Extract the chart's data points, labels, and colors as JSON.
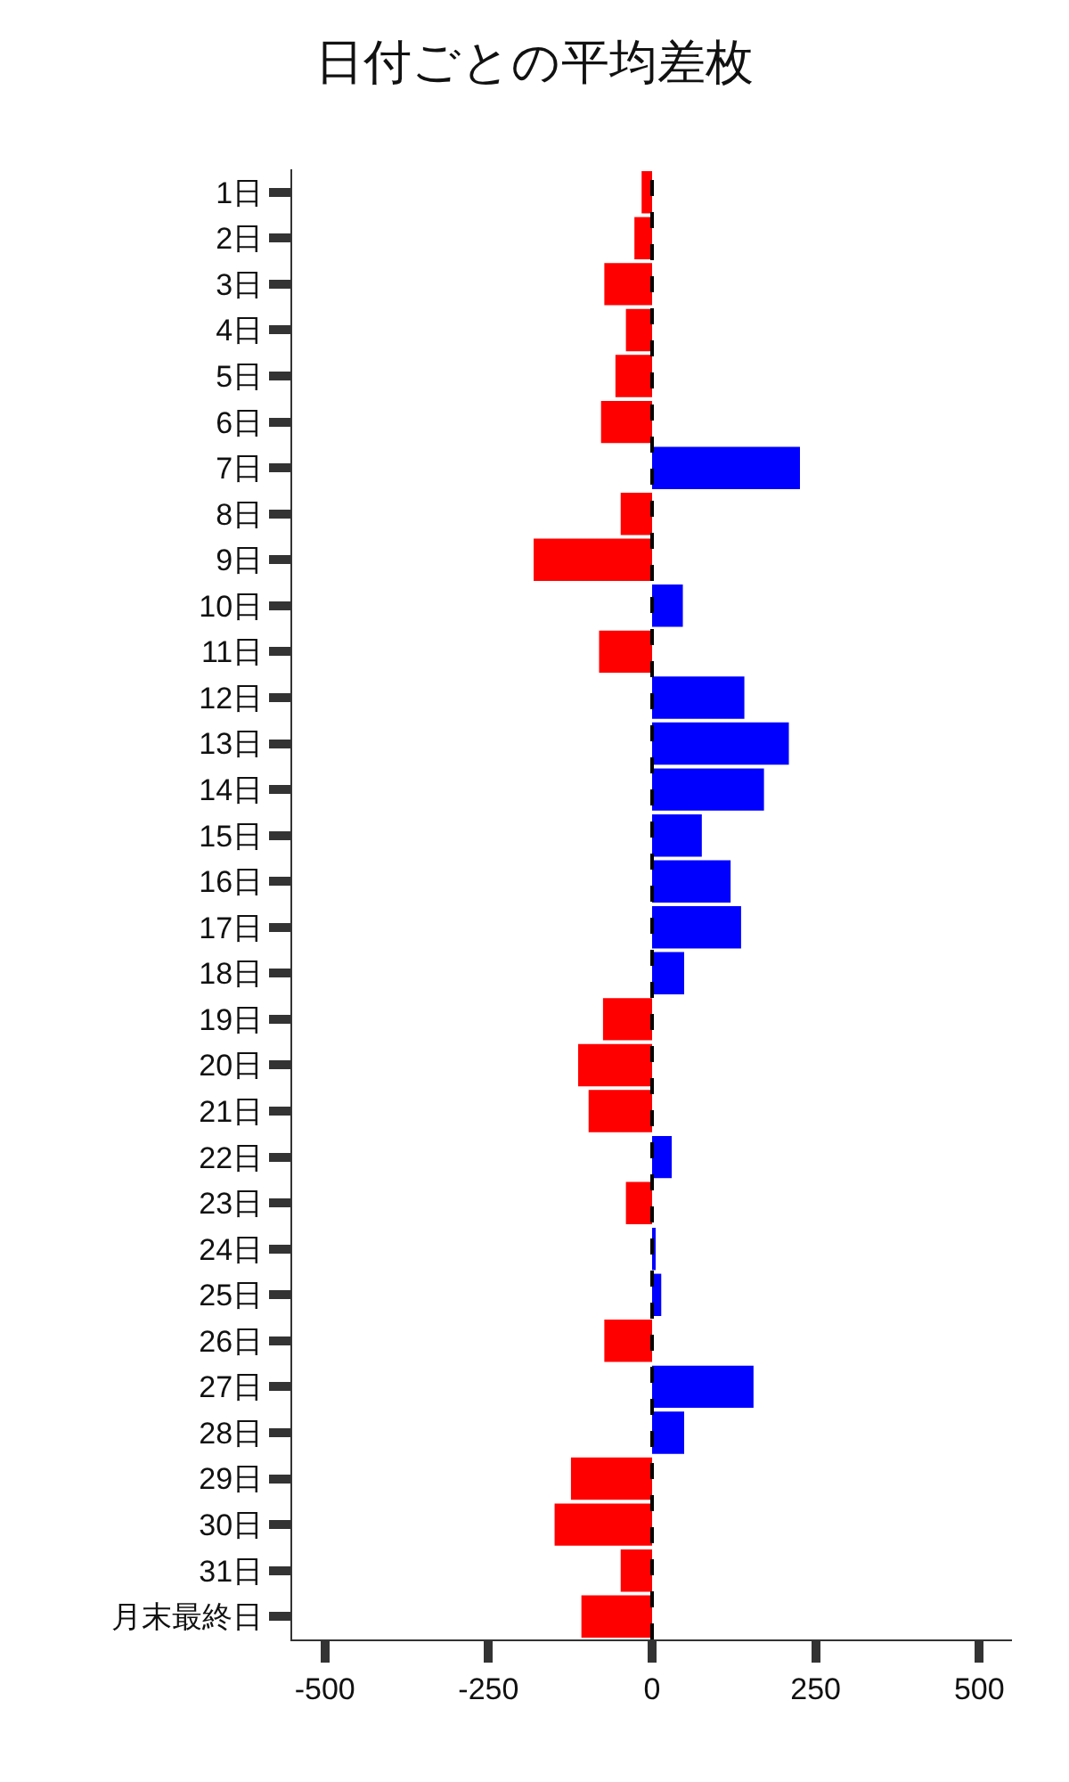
{
  "chart_data": {
    "type": "bar",
    "orientation": "horizontal",
    "title": "日付ごとの平均差枚",
    "categories": [
      "1日",
      "2日",
      "3日",
      "4日",
      "5日",
      "6日",
      "7日",
      "8日",
      "9日",
      "10日",
      "11日",
      "12日",
      "13日",
      "14日",
      "15日",
      "16日",
      "17日",
      "18日",
      "19日",
      "20日",
      "21日",
      "22日",
      "23日",
      "24日",
      "25日",
      "26日",
      "27日",
      "28日",
      "29日",
      "30日",
      "31日",
      "月末最終日"
    ],
    "values": [
      -16,
      -27,
      -73,
      -40,
      -56,
      -78,
      226,
      -48,
      -181,
      47,
      -81,
      141,
      209,
      171,
      76,
      120,
      136,
      49,
      -75,
      -113,
      -97,
      30,
      -40,
      5,
      14,
      -73,
      155,
      49,
      -124,
      -149,
      -48,
      -108
    ],
    "colors": [
      "#ff0000",
      "#ff0000",
      "#ff0000",
      "#ff0000",
      "#ff0000",
      "#ff0000",
      "#0000ff",
      "#ff0000",
      "#ff0000",
      "#0000ff",
      "#ff0000",
      "#0000ff",
      "#0000ff",
      "#0000ff",
      "#0000ff",
      "#0000ff",
      "#0000ff",
      "#0000ff",
      "#ff0000",
      "#ff0000",
      "#ff0000",
      "#0000ff",
      "#ff0000",
      "#0000ff",
      "#0000ff",
      "#ff0000",
      "#0000ff",
      "#0000ff",
      "#ff0000",
      "#ff0000",
      "#ff0000",
      "#ff0000"
    ],
    "xlim": [
      -550,
      550
    ],
    "xticks": [
      -500,
      -250,
      0,
      250,
      500
    ],
    "ref_lines": [
      {
        "axis": "x",
        "value": 0,
        "color": "#000000",
        "line_style": "dashed"
      }
    ],
    "grid": false
  }
}
